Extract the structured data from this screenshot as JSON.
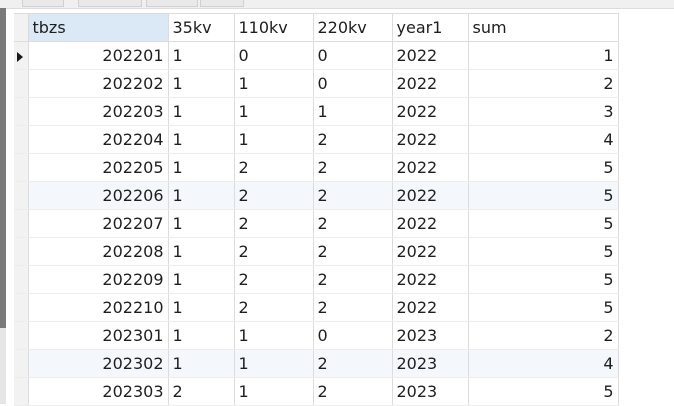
{
  "grid": {
    "columns": [
      "tbzs",
      "35kv",
      "110kv",
      "220kv",
      "year1",
      "sum"
    ],
    "rows": [
      {
        "tbzs": "202201",
        "kv35": "1",
        "kv110": "0",
        "kv220": "0",
        "year1": "2022",
        "sum": "1"
      },
      {
        "tbzs": "202202",
        "kv35": "1",
        "kv110": "1",
        "kv220": "0",
        "year1": "2022",
        "sum": "2"
      },
      {
        "tbzs": "202203",
        "kv35": "1",
        "kv110": "1",
        "kv220": "1",
        "year1": "2022",
        "sum": "3"
      },
      {
        "tbzs": "202204",
        "kv35": "1",
        "kv110": "1",
        "kv220": "2",
        "year1": "2022",
        "sum": "4"
      },
      {
        "tbzs": "202205",
        "kv35": "1",
        "kv110": "2",
        "kv220": "2",
        "year1": "2022",
        "sum": "5"
      },
      {
        "tbzs": "202206",
        "kv35": "1",
        "kv110": "2",
        "kv220": "2",
        "year1": "2022",
        "sum": "5"
      },
      {
        "tbzs": "202207",
        "kv35": "1",
        "kv110": "2",
        "kv220": "2",
        "year1": "2022",
        "sum": "5"
      },
      {
        "tbzs": "202208",
        "kv35": "1",
        "kv110": "2",
        "kv220": "2",
        "year1": "2022",
        "sum": "5"
      },
      {
        "tbzs": "202209",
        "kv35": "1",
        "kv110": "2",
        "kv220": "2",
        "year1": "2022",
        "sum": "5"
      },
      {
        "tbzs": "202210",
        "kv35": "1",
        "kv110": "2",
        "kv220": "2",
        "year1": "2022",
        "sum": "5"
      },
      {
        "tbzs": "202301",
        "kv35": "1",
        "kv110": "1",
        "kv220": "0",
        "year1": "2023",
        "sum": "2"
      },
      {
        "tbzs": "202302",
        "kv35": "1",
        "kv110": "1",
        "kv220": "2",
        "year1": "2023",
        "sum": "4"
      },
      {
        "tbzs": "202303",
        "kv35": "2",
        "kv110": "1",
        "kv220": "2",
        "year1": "2023",
        "sum": "5"
      }
    ],
    "current_row_index": 0,
    "highlighted_row_indices": [
      5,
      11
    ],
    "sorted_column": "tbzs"
  }
}
